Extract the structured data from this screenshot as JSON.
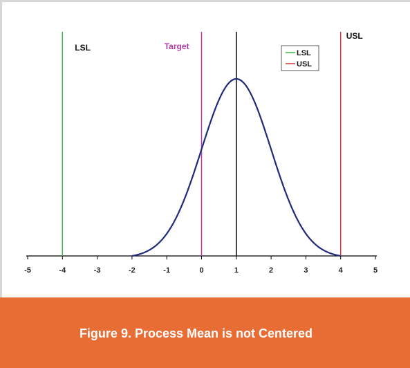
{
  "colors": {
    "lsl": "#39b54a",
    "usl": "#d1383d",
    "target": "#b23aa8",
    "mean": "#000000",
    "curve": "#1f2a7c",
    "axis": "#000000",
    "caption_band": "#e86d34",
    "caption_text": "#ffffff"
  },
  "chart_data": {
    "type": "line",
    "title": "",
    "xlabel": "",
    "ylabel": "",
    "xlim": [
      -5,
      5
    ],
    "x_ticks": [
      -5,
      -4,
      -3,
      -2,
      -1,
      0,
      1,
      2,
      3,
      4,
      5
    ],
    "grid": false,
    "series": [
      {
        "kind": "normal-curve",
        "mean": 1,
        "x": [
          -2,
          -1.75,
          -1.5,
          -1.25,
          -1,
          -0.75,
          -0.5,
          -0.25,
          0,
          0.25,
          0.5,
          0.75,
          1,
          1.25,
          1.5,
          1.75,
          2,
          2.25,
          2.5,
          2.75,
          3,
          3.25,
          3.5,
          3.75,
          4
        ],
        "y": [
          0.011,
          0.023,
          0.044,
          0.08,
          0.135,
          0.216,
          0.325,
          0.458,
          0.607,
          0.755,
          0.882,
          0.969,
          1.0,
          0.969,
          0.882,
          0.755,
          0.607,
          0.458,
          0.325,
          0.216,
          0.135,
          0.08,
          0.044,
          0.023,
          0.011
        ]
      }
    ],
    "vertical_lines": [
      {
        "name": "LSL",
        "x": -4,
        "label": "LSL",
        "color": "#39b54a"
      },
      {
        "name": "Target",
        "x": 0,
        "label": "Target",
        "color": "#b23aa8"
      },
      {
        "name": "Mean",
        "x": 1,
        "label": "",
        "color": "#000000"
      },
      {
        "name": "USL",
        "x": 4,
        "label": "USL",
        "color": "#d1383d"
      }
    ],
    "legend": {
      "placement": "top-right",
      "entries": [
        {
          "label": "LSL",
          "color": "#39b54a"
        },
        {
          "label": "USL",
          "color": "#d1383d"
        }
      ]
    }
  },
  "caption": {
    "text": "Figure 9. Process Mean is not Centered"
  }
}
